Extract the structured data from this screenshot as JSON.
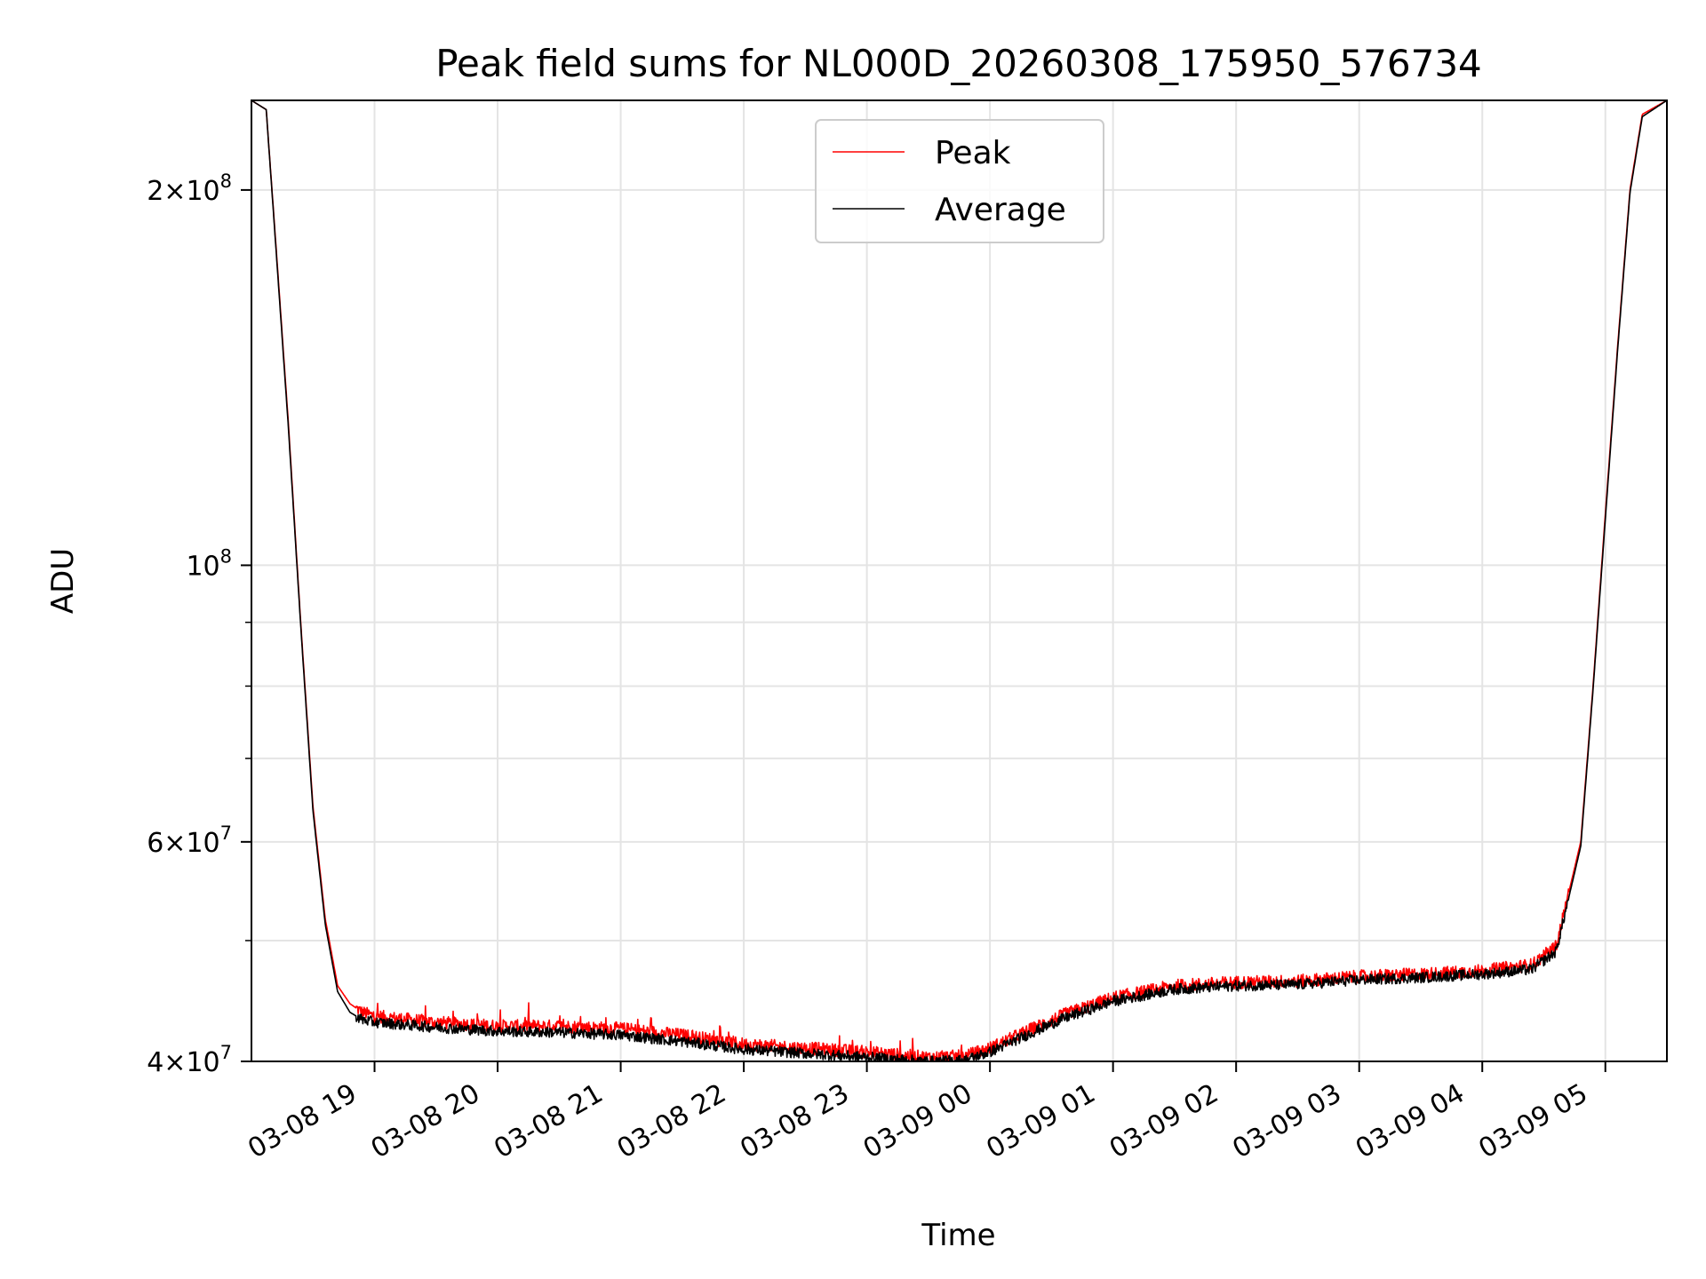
{
  "chart_data": {
    "type": "line",
    "title": "Peak field sums for NL000D_20260308_175950_576734",
    "xlabel": "Time",
    "ylabel": "ADU",
    "yscale": "log",
    "ylim": [
      40000000,
      236000000
    ],
    "xlim_hours": [
      18.0,
      29.5
    ],
    "grid": true,
    "legend_position": "top-center",
    "x_ticks": [
      {
        "hour": 19,
        "label": "03-08 19"
      },
      {
        "hour": 20,
        "label": "03-08 20"
      },
      {
        "hour": 21,
        "label": "03-08 21"
      },
      {
        "hour": 22,
        "label": "03-08 22"
      },
      {
        "hour": 23,
        "label": "03-08 23"
      },
      {
        "hour": 24,
        "label": "03-09 00"
      },
      {
        "hour": 25,
        "label": "03-09 01"
      },
      {
        "hour": 26,
        "label": "03-09 02"
      },
      {
        "hour": 27,
        "label": "03-09 03"
      },
      {
        "hour": 28,
        "label": "03-09 04"
      },
      {
        "hour": 29,
        "label": "03-09 05"
      }
    ],
    "y_major_ticks": [
      {
        "value": 40000000,
        "mantissa": "4",
        "exponent": "7"
      },
      {
        "value": 60000000,
        "mantissa": "6",
        "exponent": "7"
      },
      {
        "value": 100000000,
        "mantissa": "",
        "exponent": "8"
      },
      {
        "value": 200000000,
        "mantissa": "2",
        "exponent": "8"
      }
    ],
    "y_minor_ticks": [
      50000000,
      70000000,
      80000000,
      90000000
    ],
    "series": [
      {
        "name": "Peak",
        "color": "#ff0000",
        "x": [
          18.0,
          18.12,
          18.2,
          18.3,
          18.4,
          18.5,
          18.6,
          18.7,
          18.8,
          18.9,
          19.0,
          19.5,
          20.0,
          20.5,
          21.0,
          21.5,
          22.0,
          22.5,
          23.0,
          23.5,
          23.8,
          24.0,
          24.3,
          24.6,
          25.0,
          25.5,
          26.0,
          26.5,
          27.0,
          27.5,
          28.0,
          28.4,
          28.6,
          28.8,
          28.9,
          29.0,
          29.1,
          29.2,
          29.3,
          29.5
        ],
        "values": [
          236000000,
          232000000,
          180000000,
          130000000,
          90000000,
          64000000,
          52000000,
          46000000,
          44500000,
          43800000,
          43500000,
          43000000,
          42700000,
          42700000,
          42500000,
          42000000,
          41300000,
          41000000,
          40700000,
          40300000,
          40400000,
          41000000,
          42300000,
          43600000,
          45000000,
          46000000,
          46300000,
          46400000,
          46800000,
          47000000,
          47300000,
          47800000,
          49500000,
          60000000,
          80000000,
          110000000,
          150000000,
          200000000,
          230000000,
          236000000
        ]
      },
      {
        "name": "Average",
        "color": "#000000",
        "x": [
          18.0,
          18.12,
          18.2,
          18.3,
          18.4,
          18.5,
          18.6,
          18.7,
          18.8,
          18.9,
          19.0,
          19.5,
          20.0,
          20.5,
          21.0,
          21.5,
          22.0,
          22.5,
          23.0,
          23.5,
          23.8,
          24.0,
          24.3,
          24.6,
          25.0,
          25.5,
          26.0,
          26.5,
          27.0,
          27.5,
          28.0,
          28.4,
          28.6,
          28.8,
          28.9,
          29.0,
          29.1,
          29.2,
          29.3,
          29.5
        ],
        "values": [
          236000000,
          232000000,
          179000000,
          129000000,
          89500000,
          63500000,
          51500000,
          45500000,
          43800000,
          43200000,
          43000000,
          42600000,
          42300000,
          42200000,
          42000000,
          41500000,
          40900000,
          40600000,
          40300000,
          40000000,
          40100000,
          40700000,
          42000000,
          43300000,
          44700000,
          45700000,
          46000000,
          46100000,
          46500000,
          46700000,
          47000000,
          47400000,
          49000000,
          59500000,
          79500000,
          109000000,
          149000000,
          199000000,
          229000000,
          236000000
        ]
      }
    ]
  }
}
